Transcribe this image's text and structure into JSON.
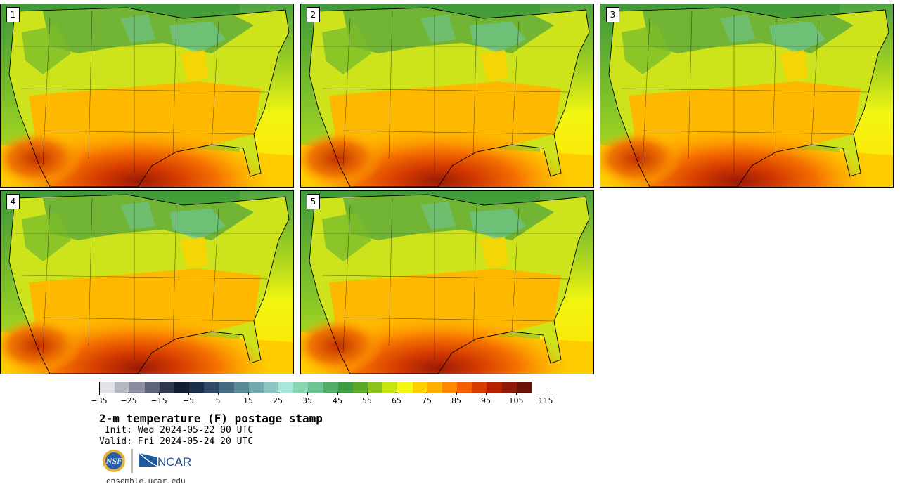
{
  "panels": [
    {
      "label": "1"
    },
    {
      "label": "2"
    },
    {
      "label": "3"
    },
    {
      "label": "4"
    },
    {
      "label": "5"
    }
  ],
  "colorbar": {
    "colors": [
      "#e2e2e6",
      "#b6b8c2",
      "#8a8d9c",
      "#5e6378",
      "#30384f",
      "#121c30",
      "#1b2d48",
      "#2f4a66",
      "#426a80",
      "#588a96",
      "#72a9ae",
      "#8dc5c3",
      "#a8e6da",
      "#86d6b2",
      "#6cc493",
      "#52ad6a",
      "#3c9c3f",
      "#5ca92a",
      "#8cc31c",
      "#c8e410",
      "#f3f711",
      "#ffd000",
      "#ffb000",
      "#ff8a00",
      "#f45d00",
      "#d93a00",
      "#b82000",
      "#8f1a08",
      "#6a1206"
    ],
    "tick_labels": [
      "−35",
      "−25",
      "−15",
      "−5",
      "5",
      "15",
      "25",
      "35",
      "45",
      "55",
      "65",
      "75",
      "85",
      "95",
      "105",
      "115"
    ]
  },
  "title": "2-m temperature (F) postage stamp",
  "init_line": " Init: Wed 2024-05-22 00 UTC",
  "valid_line": "Valid: Fri 2024-05-24 20 UTC",
  "logos": {
    "nsf": "NSF",
    "ncar": "NCAR"
  },
  "site": "ensemble.ucar.edu"
}
